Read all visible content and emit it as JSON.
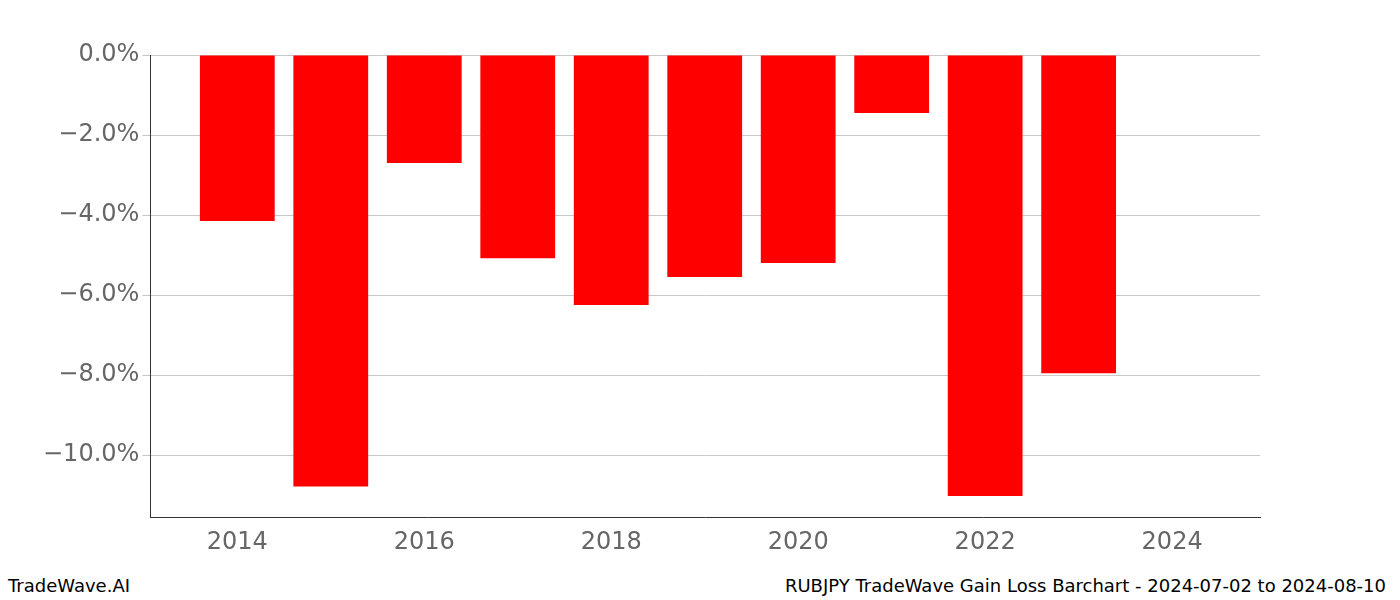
{
  "chart_data": {
    "type": "bar",
    "annotations": [
      "TradeWave.AI",
      "RUBJPY TradeWave Gain Loss Barchart - 2024-07-02 to 2024-08-10"
    ],
    "x": [
      2014,
      2015,
      2016,
      2017,
      2018,
      2019,
      2020,
      2021,
      2022,
      2023
    ],
    "values": [
      -4.15,
      -10.78,
      -2.7,
      -5.08,
      -6.25,
      -5.55,
      -5.2,
      -1.45,
      -11.02,
      -7.95
    ],
    "color": "#ff0000",
    "xlim": [
      2013.07,
      2024.94
    ],
    "xticks": [
      2014,
      2016,
      2018,
      2020,
      2022,
      2024
    ],
    "ylim": [
      -11.55,
      0
    ],
    "yticks": [
      {
        "value": 0,
        "label": "0.0%"
      },
      {
        "value": -2,
        "label": "−2.0%"
      },
      {
        "value": -4,
        "label": "−4.0%"
      },
      {
        "value": -6,
        "label": "−6.0%"
      },
      {
        "value": -8,
        "label": "−8.0%"
      },
      {
        "value": -10,
        "label": "−10.0%"
      }
    ],
    "grid": true
  }
}
